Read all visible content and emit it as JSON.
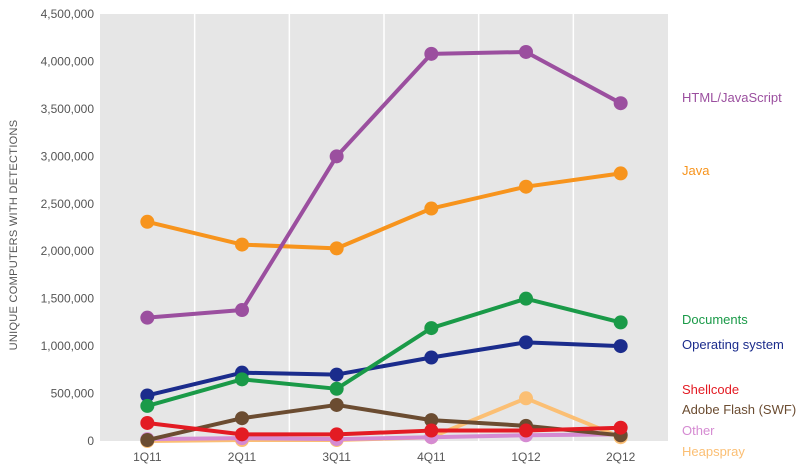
{
  "chart_data": {
    "type": "line",
    "title": "",
    "xlabel": "",
    "ylabel": "UNIQUE COMPUTERS WITH DETECTIONS",
    "categories": [
      "1Q11",
      "2Q11",
      "3Q11",
      "4Q11",
      "1Q12",
      "2Q12"
    ],
    "ylim": [
      0,
      4500000
    ],
    "yticks": [
      {
        "value": 0,
        "label": "0"
      },
      {
        "value": 500000,
        "label": "500,000"
      },
      {
        "value": 1000000,
        "label": "1,000,000"
      },
      {
        "value": 1500000,
        "label": "1,500,000"
      },
      {
        "value": 2000000,
        "label": "2,000,000"
      },
      {
        "value": 2500000,
        "label": "2,500,000"
      },
      {
        "value": 3000000,
        "label": "3,000,000"
      },
      {
        "value": 3500000,
        "label": "3,500,000"
      },
      {
        "value": 4000000,
        "label": "4,000,000"
      },
      {
        "value": 4500000,
        "label": "4,500,000"
      }
    ],
    "grid": "vertical-bands",
    "background": "#e6e6e6",
    "legend": "right, labels at line ends",
    "series": [
      {
        "name": "HTML/JavaScript",
        "color": "#9b4f9f",
        "values": [
          1300000,
          1380000,
          3000000,
          4080000,
          4100000,
          3560000
        ]
      },
      {
        "name": "Java",
        "color": "#f7941d",
        "values": [
          2310000,
          2070000,
          2030000,
          2450000,
          2680000,
          2820000
        ]
      },
      {
        "name": "Documents",
        "color": "#1a9a48",
        "values": [
          370000,
          650000,
          550000,
          1190000,
          1500000,
          1250000
        ]
      },
      {
        "name": "Operating system",
        "color": "#1b2c8c",
        "values": [
          480000,
          720000,
          700000,
          880000,
          1040000,
          1000000
        ]
      },
      {
        "name": "Shellcode",
        "color": "#e31b23",
        "values": [
          190000,
          70000,
          70000,
          110000,
          110000,
          140000
        ]
      },
      {
        "name": "Adobe Flash (SWF)",
        "color": "#6b4c31",
        "values": [
          10000,
          240000,
          380000,
          220000,
          160000,
          60000
        ]
      },
      {
        "name": "Other",
        "color": "#d58bd2",
        "values": [
          20000,
          30000,
          20000,
          40000,
          60000,
          70000
        ]
      },
      {
        "name": "Heapspray",
        "color": "#fbbf74",
        "values": [
          0,
          10000,
          10000,
          40000,
          450000,
          40000
        ]
      }
    ]
  }
}
